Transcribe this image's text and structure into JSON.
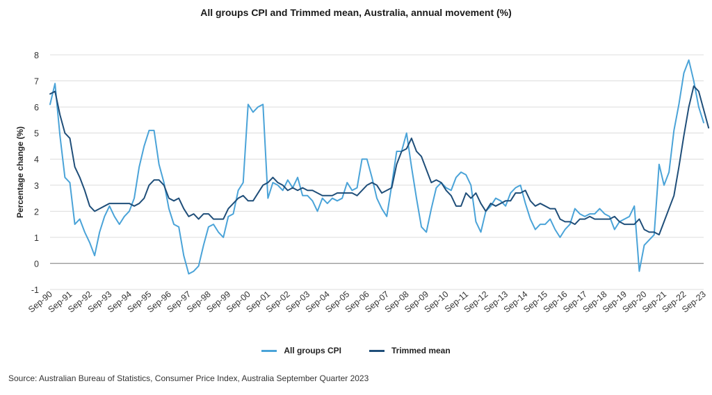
{
  "chart_data": {
    "type": "line",
    "title": "All groups CPI and Trimmed mean, Australia, annual movement (%)",
    "ylabel": "Percentage change (%)",
    "xlabel": "",
    "ylim": [
      -1,
      8
    ],
    "yticks": [
      -1,
      0,
      1,
      2,
      3,
      4,
      5,
      6,
      7,
      8
    ],
    "grid": true,
    "legend_placement": "bottom",
    "x_start": "Sep-90",
    "x_tick_labels": [
      "Sep-90",
      "Sep-91",
      "Sep-92",
      "Sep-93",
      "Sep-94",
      "Sep-95",
      "Sep-96",
      "Sep-97",
      "Sep-98",
      "Sep-99",
      "Sep-00",
      "Sep-01",
      "Sep-02",
      "Sep-03",
      "Sep-04",
      "Sep-05",
      "Sep-06",
      "Sep-07",
      "Sep-08",
      "Sep-09",
      "Sep-10",
      "Sep-11",
      "Sep-12",
      "Sep-13",
      "Sep-14",
      "Sep-15",
      "Sep-16",
      "Sep-17",
      "Sep-18",
      "Sep-19",
      "Sep-20",
      "Sep-21",
      "Sep-22",
      "Sep-23"
    ],
    "series": [
      {
        "name": "All groups CPI",
        "color": "#4aa3d8",
        "values": [
          6.1,
          6.9,
          4.9,
          3.3,
          3.1,
          1.5,
          1.7,
          1.2,
          0.8,
          0.3,
          1.2,
          1.8,
          2.2,
          1.8,
          1.5,
          1.8,
          2.0,
          2.5,
          3.7,
          4.5,
          5.1,
          5.1,
          3.8,
          3.1,
          2.1,
          1.5,
          1.4,
          0.3,
          -0.4,
          -0.3,
          -0.1,
          0.7,
          1.4,
          1.5,
          1.2,
          1.0,
          1.8,
          1.9,
          2.8,
          3.1,
          6.1,
          5.8,
          6.0,
          6.1,
          2.5,
          3.1,
          3.0,
          2.8,
          3.2,
          2.9,
          3.3,
          2.6,
          2.6,
          2.4,
          2.0,
          2.5,
          2.3,
          2.5,
          2.4,
          2.5,
          3.1,
          2.8,
          2.9,
          4.0,
          4.0,
          3.3,
          2.5,
          2.1,
          1.8,
          3.0,
          4.3,
          4.3,
          5.0,
          3.7,
          2.5,
          1.4,
          1.2,
          2.1,
          2.9,
          3.1,
          2.9,
          2.8,
          3.3,
          3.5,
          3.4,
          3.0,
          1.6,
          1.2,
          2.0,
          2.2,
          2.5,
          2.4,
          2.2,
          2.7,
          2.9,
          3.0,
          2.3,
          1.7,
          1.3,
          1.5,
          1.5,
          1.7,
          1.3,
          1.0,
          1.3,
          1.5,
          2.1,
          1.9,
          1.8,
          1.9,
          1.9,
          2.1,
          1.9,
          1.8,
          1.3,
          1.6,
          1.7,
          1.8,
          2.2,
          -0.3,
          0.7,
          0.9,
          1.1,
          3.8,
          3.0,
          3.5,
          5.1,
          6.1,
          7.3,
          7.8,
          7.0,
          6.0,
          5.4
        ]
      },
      {
        "name": "Trimmed mean",
        "color": "#1f4e79",
        "values": [
          6.5,
          6.6,
          5.7,
          5.0,
          4.8,
          3.7,
          3.3,
          2.8,
          2.2,
          2.0,
          2.1,
          2.2,
          2.3,
          2.3,
          2.3,
          2.3,
          2.3,
          2.2,
          2.3,
          2.5,
          3.0,
          3.2,
          3.2,
          3.0,
          2.5,
          2.4,
          2.5,
          2.1,
          1.8,
          1.9,
          1.7,
          1.9,
          1.9,
          1.7,
          1.7,
          1.7,
          2.1,
          2.3,
          2.5,
          2.6,
          2.4,
          2.4,
          2.7,
          3.0,
          3.1,
          3.3,
          3.1,
          3.0,
          2.8,
          2.9,
          2.8,
          2.9,
          2.8,
          2.8,
          2.7,
          2.6,
          2.6,
          2.6,
          2.7,
          2.7,
          2.7,
          2.7,
          2.6,
          2.8,
          3.0,
          3.1,
          3.0,
          2.7,
          2.8,
          2.9,
          3.8,
          4.3,
          4.4,
          4.8,
          4.3,
          4.1,
          3.6,
          3.1,
          3.2,
          3.1,
          2.8,
          2.6,
          2.2,
          2.2,
          2.7,
          2.5,
          2.7,
          2.3,
          2.0,
          2.3,
          2.2,
          2.3,
          2.4,
          2.4,
          2.7,
          2.7,
          2.8,
          2.4,
          2.2,
          2.3,
          2.2,
          2.1,
          2.1,
          1.7,
          1.6,
          1.6,
          1.5,
          1.7,
          1.7,
          1.8,
          1.7,
          1.7,
          1.7,
          1.7,
          1.8,
          1.6,
          1.5,
          1.5,
          1.5,
          1.7,
          1.3,
          1.2,
          1.2,
          1.1,
          1.6,
          2.1,
          2.6,
          3.7,
          4.9,
          6.0,
          6.8,
          6.6,
          5.9,
          5.2
        ]
      }
    ]
  },
  "legend": {
    "items": [
      {
        "label": "All groups CPI",
        "color": "#4aa3d8"
      },
      {
        "label": "Trimmed mean",
        "color": "#1f4e79"
      }
    ]
  },
  "source": "Source: Australian Bureau of Statistics, Consumer Price Index, Australia September Quarter 2023"
}
